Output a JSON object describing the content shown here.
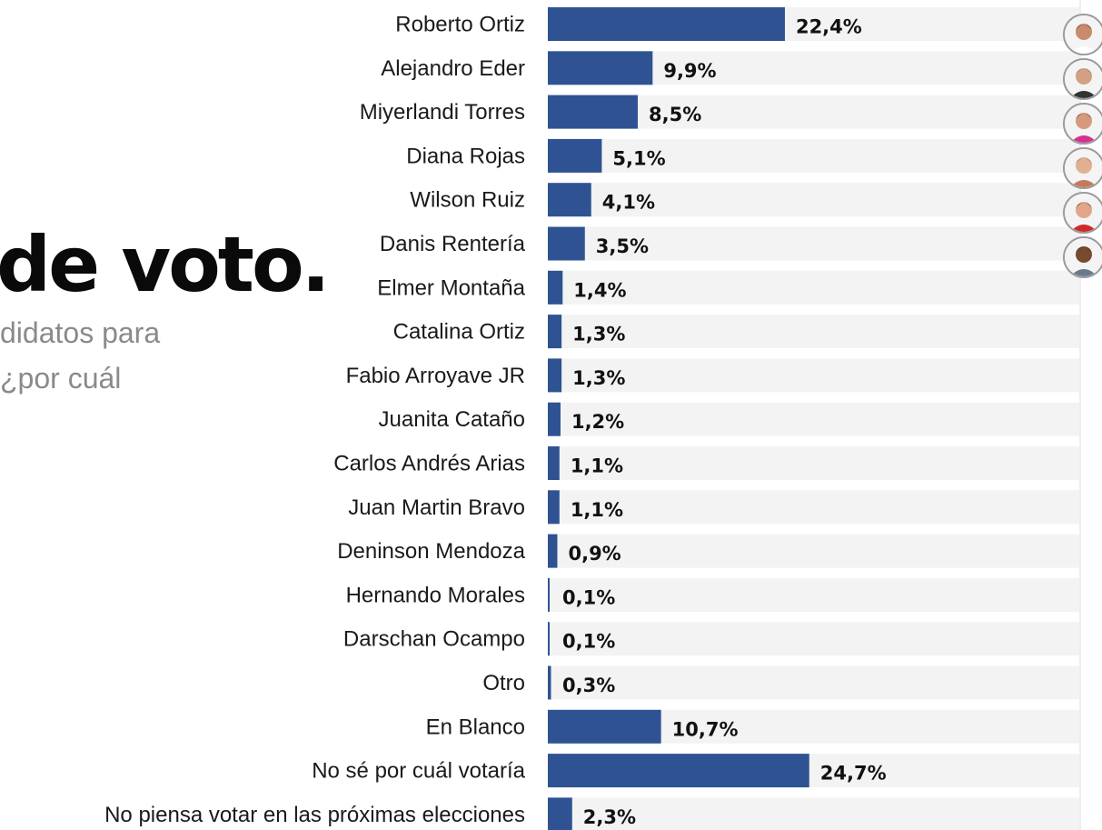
{
  "headline": "de voto.",
  "subtitle_lines": [
    "didatos para",
    "¿por cuál"
  ],
  "chart_data": {
    "type": "bar",
    "orientation": "horizontal",
    "categories": [
      "Roberto Ortiz",
      "Alejandro Eder",
      "Miyerlandi Torres",
      "Diana Rojas",
      "Wilson Ruiz",
      "Danis Rentería",
      "Elmer Montaña",
      "Catalina Ortiz",
      "Fabio Arroyave JR",
      "Juanita Cataño",
      "Carlos Andrés Arias",
      "Juan Martin Bravo",
      "Deninson Mendoza",
      "Hernando Morales",
      "Darschan Ocampo",
      "Otro",
      "En Blanco",
      "No sé por cuál votaría",
      "No piensa votar en las próximas elecciones"
    ],
    "values": [
      22.4,
      9.9,
      8.5,
      5.1,
      4.1,
      3.5,
      1.4,
      1.3,
      1.3,
      1.2,
      1.1,
      1.1,
      0.9,
      0.1,
      0.1,
      0.3,
      10.7,
      24.7,
      2.3
    ],
    "value_labels": [
      "22,4%",
      "9,9%",
      "8,5%",
      "5,1%",
      "4,1%",
      "3,5%",
      "1,4%",
      "1,3%",
      "1,3%",
      "1,2%",
      "1,1%",
      "1,1%",
      "0,9%",
      "0,1%",
      "0,1%",
      "0,3%",
      "10,7%",
      "24,7%",
      "2,3%"
    ],
    "xlim": [
      0,
      50
    ],
    "grid": false,
    "legend": "none",
    "colors": {
      "bar": "#2f5392",
      "track": "#f3f3f3",
      "axis": "#dcdcdc"
    }
  },
  "avatars": [
    {
      "name": "avatar-1",
      "skin": "#c98b6b",
      "shirt": "#ffffff",
      "hair": "#2a1d16"
    },
    {
      "name": "avatar-2",
      "skin": "#d2a184",
      "shirt": "#333333",
      "hair": "#6b6b6b"
    },
    {
      "name": "avatar-3",
      "skin": "#d59a7d",
      "shirt": "#d6308f",
      "hair": "#3b2418"
    },
    {
      "name": "avatar-4",
      "skin": "#e0b092",
      "shirt": "#c47a5a",
      "hair": "#8a5a34"
    },
    {
      "name": "avatar-5",
      "skin": "#e2a58a",
      "shirt": "#d02a2a",
      "hair": "#1e1714"
    },
    {
      "name": "avatar-6",
      "skin": "#7a4a30",
      "shirt": "#6b7a8a",
      "hair": "#2a1a12"
    }
  ]
}
